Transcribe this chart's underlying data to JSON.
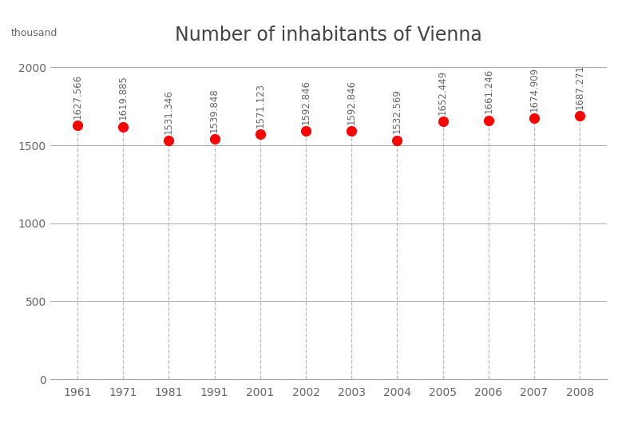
{
  "title": "Number of inhabitants of Vienna",
  "ylabel": "thousand",
  "categories": [
    "1961",
    "1971",
    "1981",
    "1991",
    "2001",
    "2002",
    "2003",
    "2004",
    "2005",
    "2006",
    "2007",
    "2008"
  ],
  "values": [
    1627.566,
    1619.885,
    1531.346,
    1539.848,
    1571.123,
    1592.846,
    1592.846,
    1532.569,
    1652.449,
    1661.246,
    1674.909,
    1687.271
  ],
  "dot_color": "#ff0000",
  "stem_color": "#bbbbbb",
  "yticks": [
    0,
    500,
    1000,
    1500,
    2000
  ],
  "ylim": [
    0,
    2100
  ],
  "hgrid_color": "#aaaaaa",
  "text_color": "#666666",
  "bg_color": "#ffffff",
  "title_fontsize": 17,
  "label_fontsize": 9,
  "tick_fontsize": 10,
  "annotation_fontsize": 8.5
}
